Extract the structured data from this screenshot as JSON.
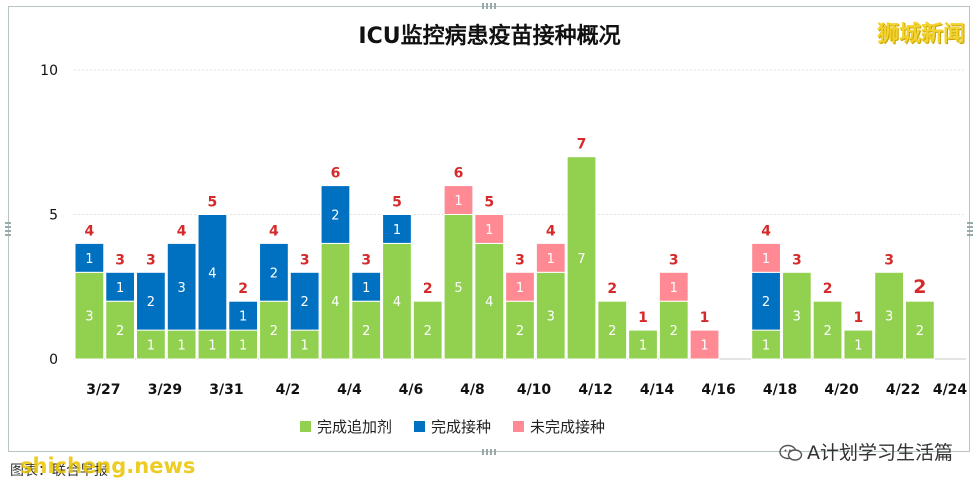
{
  "title": "ICU监控病患疫苗接种概况",
  "logo_text": "狮城新闻",
  "watermark_right": "A计划学习生活篇",
  "watermark_left": "图表：联合早报",
  "watermark_overlay": "shicheng.news",
  "colors": {
    "booster": "#92d050",
    "vaccinated": "#0070c0",
    "unvaccinated": "#ff8a94",
    "total_label": "#d62a2a"
  },
  "legend": [
    {
      "name": "完成追加剂",
      "color": "#92d050"
    },
    {
      "name": "完成接种",
      "color": "#0070c0"
    },
    {
      "name": "未完成接种",
      "color": "#ff8a94"
    }
  ],
  "chart_data": {
    "type": "bar",
    "stacked": true,
    "title": "ICU监控病患疫苗接种概况",
    "ylim": [
      0,
      10
    ],
    "yticks": [
      0,
      5,
      10
    ],
    "grid": true,
    "legend_position": "bottom",
    "categories": [
      "3/27",
      "3/28",
      "3/29",
      "3/30",
      "3/31",
      "4/1",
      "4/2",
      "4/3",
      "4/4",
      "4/5",
      "4/6",
      "4/7",
      "4/8",
      "4/9",
      "4/10",
      "4/11",
      "4/12",
      "4/13",
      "4/14",
      "4/15",
      "4/16",
      "4/17",
      "4/18",
      "4/19",
      "4/20",
      "4/21",
      "4/22",
      "4/23",
      "4/24"
    ],
    "xtick_labels": [
      "3/27",
      "3/29",
      "3/31",
      "4/2",
      "4/4",
      "4/6",
      "4/8",
      "4/10",
      "4/12",
      "4/14",
      "4/16",
      "4/18",
      "4/20",
      "4/22",
      "4/24"
    ],
    "series": [
      {
        "name": "完成追加剂",
        "values": [
          3,
          2,
          1,
          1,
          1,
          1,
          2,
          1,
          4,
          2,
          4,
          2,
          5,
          4,
          2,
          3,
          7,
          2,
          1,
          2,
          0,
          null,
          1,
          3,
          2,
          1,
          3,
          2,
          null
        ]
      },
      {
        "name": "完成接种",
        "values": [
          1,
          1,
          2,
          3,
          4,
          1,
          2,
          2,
          2,
          1,
          1,
          0,
          0,
          0,
          0,
          0,
          0,
          0,
          0,
          0,
          0,
          null,
          2,
          0,
          0,
          0,
          0,
          0,
          null
        ]
      },
      {
        "name": "未完成接种",
        "values": [
          0,
          0,
          0,
          0,
          0,
          0,
          0,
          0,
          0,
          0,
          0,
          0,
          1,
          1,
          1,
          1,
          0,
          0,
          0,
          1,
          1,
          null,
          1,
          0,
          0,
          0,
          0,
          0,
          null
        ]
      }
    ],
    "totals": [
      4,
      3,
      3,
      4,
      5,
      2,
      4,
      3,
      6,
      3,
      5,
      2,
      6,
      5,
      3,
      4,
      7,
      2,
      1,
      3,
      1,
      null,
      4,
      3,
      2,
      1,
      3,
      2,
      null
    ]
  }
}
